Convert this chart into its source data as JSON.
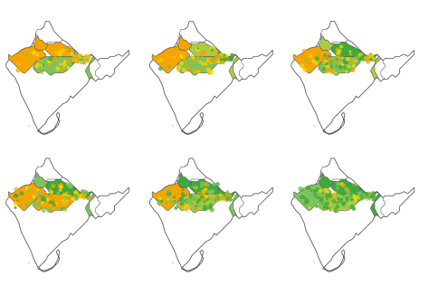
{
  "background_color": "#ffffff",
  "ncols": 3,
  "nrows": 2,
  "figsize": [
    4.74,
    3.16
  ],
  "dpi": 100,
  "colors": {
    "orange": "#F5A500",
    "yellow": "#FFD700",
    "green": "#3DAA3D",
    "light_green": "#7DC45A",
    "yellow_green": "#AACC44",
    "outline": "#555555"
  }
}
